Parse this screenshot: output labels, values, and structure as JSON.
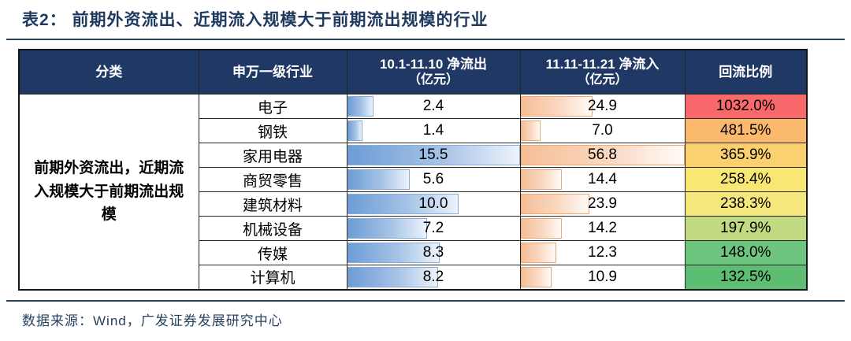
{
  "title": "表2：  前期外资流出、近期流入规模大于前期流出规模的行业",
  "footer": {
    "source": "数据来源：Wind，广发证券发展研究中心"
  },
  "colors": {
    "header_bg": "#1F3864",
    "title_navy": "#1d3a5e",
    "outflow_bar_border": "#86AEDC",
    "outflow_bar_fill": "#6D9CD5",
    "inflow_bar_border": "#F0A771",
    "inflow_bar_fill": "#F5BE96"
  },
  "table": {
    "headers": {
      "category": "分类",
      "industry": "申万一级行业",
      "outflow_line1": "10.1-11.10 净流出",
      "outflow_line2": "（亿元）",
      "inflow_line1": "11.11-11.21 净流入",
      "inflow_line2": "（亿元）",
      "ratio": "回流比例"
    },
    "category_label": "前期外资流出，近期流入规模大于前期流出规模",
    "rows": [
      {
        "industry": "电子",
        "outflow": "2.4",
        "inflow": "24.9",
        "ratio": "1032.0%",
        "ratio_bg": "#F8696B",
        "outflow_bar_pct": 15.5,
        "inflow_bar_pct": 43.8
      },
      {
        "industry": "钢铁",
        "outflow": "1.4",
        "inflow": "7.0",
        "ratio": "481.5%",
        "ratio_bg": "#FBB96E",
        "outflow_bar_pct": 9.0,
        "inflow_bar_pct": 12.3
      },
      {
        "industry": "家用电器",
        "outflow": "15.5",
        "inflow": "56.8",
        "ratio": "365.9%",
        "ratio_bg": "#FBD06E",
        "outflow_bar_pct": 100,
        "inflow_bar_pct": 100
      },
      {
        "industry": "商贸零售",
        "outflow": "5.6",
        "inflow": "14.4",
        "ratio": "258.4%",
        "ratio_bg": "#F8E873",
        "outflow_bar_pct": 36.1,
        "inflow_bar_pct": 25.4
      },
      {
        "industry": "建筑材料",
        "outflow": "10.0",
        "inflow": "23.9",
        "ratio": "238.3%",
        "ratio_bg": "#F6E77C",
        "outflow_bar_pct": 64.5,
        "inflow_bar_pct": 42.1
      },
      {
        "industry": "机械设备",
        "outflow": "7.2",
        "inflow": "14.2",
        "ratio": "197.9%",
        "ratio_bg": "#C2DA81",
        "outflow_bar_pct": 46.5,
        "inflow_bar_pct": 25.0
      },
      {
        "industry": "传媒",
        "outflow": "8.3",
        "inflow": "12.3",
        "ratio": "148.0%",
        "ratio_bg": "#6EC57F",
        "outflow_bar_pct": 53.5,
        "inflow_bar_pct": 21.7
      },
      {
        "industry": "计算机",
        "outflow": "8.2",
        "inflow": "10.9",
        "ratio": "132.5%",
        "ratio_bg": "#5DBE73",
        "outflow_bar_pct": 52.9,
        "inflow_bar_pct": 19.2
      }
    ]
  },
  "chart_data": {
    "type": "table",
    "title": "表2：前期外资流出、近期流入规模大于前期流出规模的行业",
    "columns": [
      "分类",
      "申万一级行业",
      "10.1-11.10 净流出（亿元）",
      "11.11-11.21 净流入（亿元）",
      "回流比例"
    ],
    "category": "前期外资流出，近期流入规模大于前期流出规模",
    "rows": [
      [
        "电子",
        2.4,
        24.9,
        "1032.0%"
      ],
      [
        "钢铁",
        1.4,
        7.0,
        "481.5%"
      ],
      [
        "家用电器",
        15.5,
        56.8,
        "365.9%"
      ],
      [
        "商贸零售",
        5.6,
        14.4,
        "258.4%"
      ],
      [
        "建筑材料",
        10.0,
        23.9,
        "238.3%"
      ],
      [
        "机械设备",
        7.2,
        14.2,
        "197.9%"
      ],
      [
        "传媒",
        8.3,
        12.3,
        "148.0%"
      ],
      [
        "计算机",
        8.2,
        10.9,
        "132.5%"
      ]
    ],
    "visual_encodings": {
      "outflow_bars": "blue gradient in-cell data bars, scaled to column max 15.5",
      "inflow_bars": "orange gradient in-cell data bars, scaled to column max 56.8",
      "ratio_color_scale": "red (high, 1032.0%) → yellow → green (low, 132.5%)"
    },
    "source": "数据来源：Wind，广发证券发展研究中心"
  }
}
